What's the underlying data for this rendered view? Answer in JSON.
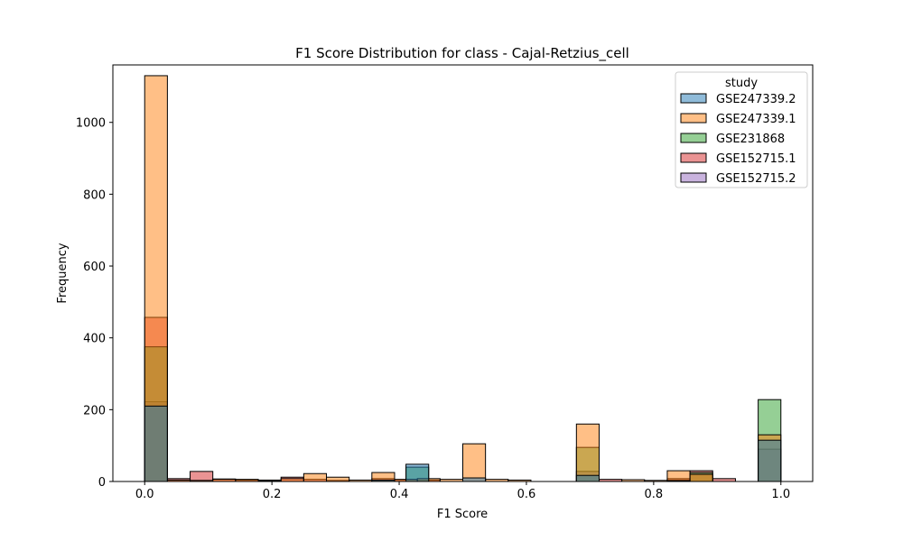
{
  "chart_data": {
    "type": "bar",
    "subtype": "overlaid-histogram",
    "title": "F1 Score Distribution for class - Cajal-Retzius_cell",
    "xlabel": "F1 Score",
    "ylabel": "Frequency",
    "xlim": [
      -0.05,
      1.05
    ],
    "ylim": [
      0,
      1160
    ],
    "bin_width": 0.0357,
    "x_ticks": [
      0.0,
      0.2,
      0.4,
      0.6,
      0.8,
      1.0
    ],
    "x_tick_labels": [
      "0.0",
      "0.2",
      "0.4",
      "0.6",
      "0.8",
      "1.0"
    ],
    "y_ticks": [
      0,
      200,
      400,
      600,
      800,
      1000
    ],
    "y_tick_labels": [
      "0",
      "200",
      "400",
      "600",
      "800",
      "1000"
    ],
    "grid": false,
    "legend_title": "study",
    "legend_position": "upper-right",
    "series": [
      {
        "name": "GSE247339.2",
        "color": "#1f77b4",
        "bins": [
          {
            "x0": 0.0,
            "value": 210
          },
          {
            "x0": 0.1786,
            "value": 2
          },
          {
            "x0": 0.3571,
            "value": 4
          },
          {
            "x0": 0.4107,
            "value": 48
          },
          {
            "x0": 0.5,
            "value": 10
          },
          {
            "x0": 0.6786,
            "value": 17
          },
          {
            "x0": 0.8214,
            "value": 2
          },
          {
            "x0": 0.9643,
            "value": 115
          }
        ]
      },
      {
        "name": "GSE247339.1",
        "color": "#ff7f0e",
        "bins": [
          {
            "x0": 0.0,
            "value": 1130
          },
          {
            "x0": 0.0357,
            "value": 4
          },
          {
            "x0": 0.0714,
            "value": 3
          },
          {
            "x0": 0.1071,
            "value": 6
          },
          {
            "x0": 0.1429,
            "value": 6
          },
          {
            "x0": 0.1786,
            "value": 4
          },
          {
            "x0": 0.2143,
            "value": 8
          },
          {
            "x0": 0.25,
            "value": 22
          },
          {
            "x0": 0.2857,
            "value": 12
          },
          {
            "x0": 0.3214,
            "value": 4
          },
          {
            "x0": 0.3571,
            "value": 25
          },
          {
            "x0": 0.3929,
            "value": 6
          },
          {
            "x0": 0.4286,
            "value": 8
          },
          {
            "x0": 0.4643,
            "value": 6
          },
          {
            "x0": 0.5,
            "value": 105
          },
          {
            "x0": 0.5357,
            "value": 6
          },
          {
            "x0": 0.5714,
            "value": 4
          },
          {
            "x0": 0.6786,
            "value": 160
          },
          {
            "x0": 0.75,
            "value": 5
          },
          {
            "x0": 0.7857,
            "value": 3
          },
          {
            "x0": 0.8214,
            "value": 30
          },
          {
            "x0": 0.8571,
            "value": 20
          },
          {
            "x0": 0.9643,
            "value": 130
          }
        ]
      },
      {
        "name": "GSE231868",
        "color": "#2ca02c",
        "bins": [
          {
            "x0": 0.0,
            "value": 375
          },
          {
            "x0": 0.3571,
            "value": 3
          },
          {
            "x0": 0.4107,
            "value": 40
          },
          {
            "x0": 0.6786,
            "value": 95
          },
          {
            "x0": 0.8214,
            "value": 4
          },
          {
            "x0": 0.8571,
            "value": 25
          },
          {
            "x0": 0.9643,
            "value": 228
          }
        ]
      },
      {
        "name": "GSE152715.1",
        "color": "#d62728",
        "bins": [
          {
            "x0": 0.0,
            "value": 457
          },
          {
            "x0": 0.0357,
            "value": 8
          },
          {
            "x0": 0.0714,
            "value": 28
          },
          {
            "x0": 0.1071,
            "value": 7
          },
          {
            "x0": 0.1429,
            "value": 4
          },
          {
            "x0": 0.2143,
            "value": 12
          },
          {
            "x0": 0.25,
            "value": 6
          },
          {
            "x0": 0.2857,
            "value": 3
          },
          {
            "x0": 0.3571,
            "value": 8
          },
          {
            "x0": 0.3929,
            "value": 5
          },
          {
            "x0": 0.4286,
            "value": 4
          },
          {
            "x0": 0.7143,
            "value": 6
          },
          {
            "x0": 0.8214,
            "value": 8
          },
          {
            "x0": 0.8571,
            "value": 30
          },
          {
            "x0": 0.8929,
            "value": 8
          }
        ]
      },
      {
        "name": "GSE152715.2",
        "color": "#9467bd",
        "bins": [
          {
            "x0": 0.0,
            "value": 222
          },
          {
            "x0": 0.6786,
            "value": 28
          },
          {
            "x0": 0.9643,
            "value": 90
          }
        ]
      }
    ]
  }
}
